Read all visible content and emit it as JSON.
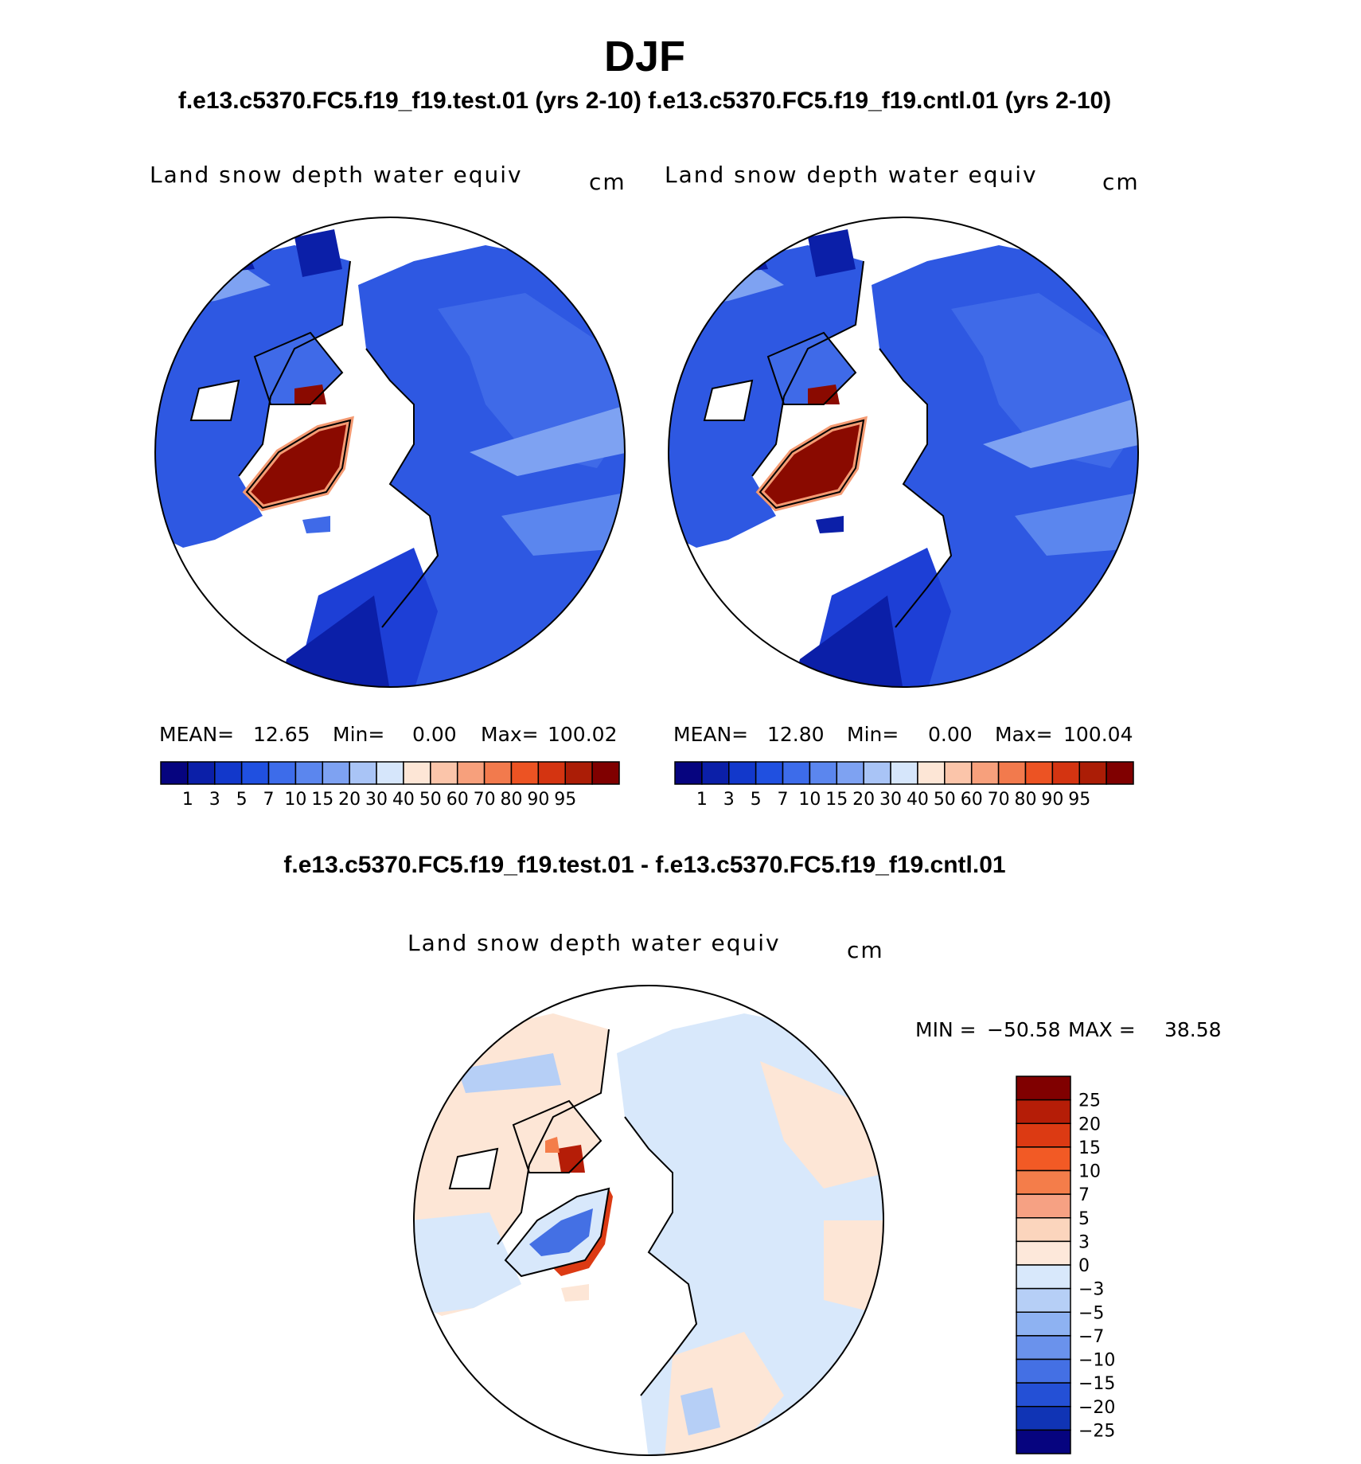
{
  "title": "DJF",
  "case_header": "f.e13.c5370.FC5.f19_f19.test.01 (yrs 2-10) f.e13.c5370.FC5.f19_f19.cntl.01 (yrs 2-10)",
  "diff_header": "f.e13.c5370.FC5.f19_f19.test.01 - f.e13.c5370.FC5.f19_f19.cntl.01",
  "panels": [
    {
      "variable": "Land snow depth water equiv",
      "units": "cm",
      "mean_label": "MEAN=",
      "mean": "12.65",
      "min_label": "Min=",
      "min": "0.00",
      "max_label": "Max=",
      "max": "100.02"
    },
    {
      "variable": "Land snow depth water equiv",
      "units": "cm",
      "mean_label": "MEAN=",
      "mean": "12.80",
      "min_label": "Min=",
      "min": "0.00",
      "max_label": "Max=",
      "max": "100.04"
    }
  ],
  "diff_panel": {
    "variable": "Land snow depth water equiv",
    "units": "cm",
    "min_label": "MIN =",
    "min": "−50.58",
    "max_label": "MAX =",
    "max": "38.58"
  },
  "abs_colorbar": {
    "labels": [
      "1",
      "3",
      "5",
      "7",
      "10",
      "15",
      "20",
      "30",
      "40",
      "50",
      "60",
      "70",
      "80",
      "90",
      "95"
    ],
    "colors": [
      "#06047f",
      "#0b1fa8",
      "#1238cb",
      "#2050e0",
      "#3d6cea",
      "#5b86ee",
      "#7ea2f2",
      "#a9c4f6",
      "#d6e6fb",
      "#fde6d6",
      "#fbc5aa",
      "#f7a07c",
      "#f27a4d",
      "#ec5323",
      "#d43411",
      "#ab1d06",
      "#800000"
    ]
  },
  "diff_colorbar": {
    "labels": [
      "25",
      "20",
      "15",
      "10",
      "7",
      "5",
      "3",
      "0",
      "−3",
      "−5",
      "−7",
      "−10",
      "−15",
      "−20",
      "−25"
    ],
    "colors": [
      "#800000",
      "#b51d07",
      "#dc3a13",
      "#f25a25",
      "#f47d4a",
      "#f6a183",
      "#fbd5bd",
      "#fde8da",
      "#d8e8fb",
      "#b6cff6",
      "#8eb2f2",
      "#6a92ec",
      "#4470e4",
      "#2450d6",
      "#1034b5",
      "#06047f"
    ]
  },
  "map": {
    "projection": "north-polar-stereographic",
    "land_colors": {
      "snow_deep_blue": "#1d3fd6",
      "snow_mid_blue": "#3a66e6",
      "snow_light_blue": "#7ea2f2",
      "greenland_red": "#8a0a00",
      "greenland_edge": "#f49a72",
      "diff_warm": "#fde6d6",
      "diff_cool": "#d8e8fb"
    }
  }
}
